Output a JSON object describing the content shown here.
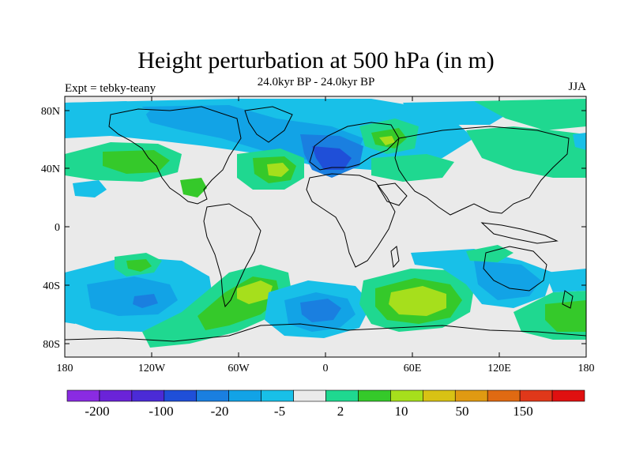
{
  "figure": {
    "title": "Height perturbation at 500 hPa (in m)",
    "subtitle": "24.0kyr BP - 24.0kyr BP",
    "left_label": "Expt = tebky-teany",
    "right_label": "JJA"
  },
  "axes": {
    "lat_ticks": [
      "80N",
      "40N",
      "0",
      "40S",
      "80S"
    ],
    "lon_ticks": [
      "180",
      "120W",
      "60W",
      "0",
      "60E",
      "120E",
      "180"
    ]
  },
  "colorbar": {
    "colors": [
      "#8a2be2",
      "#6a23d8",
      "#4b2bd6",
      "#1f4fd8",
      "#1a7fe0",
      "#12a3e6",
      "#18c0e8",
      "#eaeaea",
      "#1fd890",
      "#35c92a",
      "#a6df1c",
      "#d8c214",
      "#e09a12",
      "#e06a12",
      "#e0381a",
      "#e01010"
    ],
    "labels": [
      "-200",
      "-100",
      "-20",
      "-5",
      "2",
      "10",
      "50",
      "150"
    ]
  },
  "colors": {
    "background": "#eaeaea",
    "deep_blue": "#1f4fd8",
    "mid_blue": "#1a7fe0",
    "light_blue": "#12a3e6",
    "cyan": "#18c0e8",
    "teal_green": "#1fd890",
    "green": "#35c92a",
    "yellow_green": "#a6df1c",
    "coast": "#000000"
  }
}
